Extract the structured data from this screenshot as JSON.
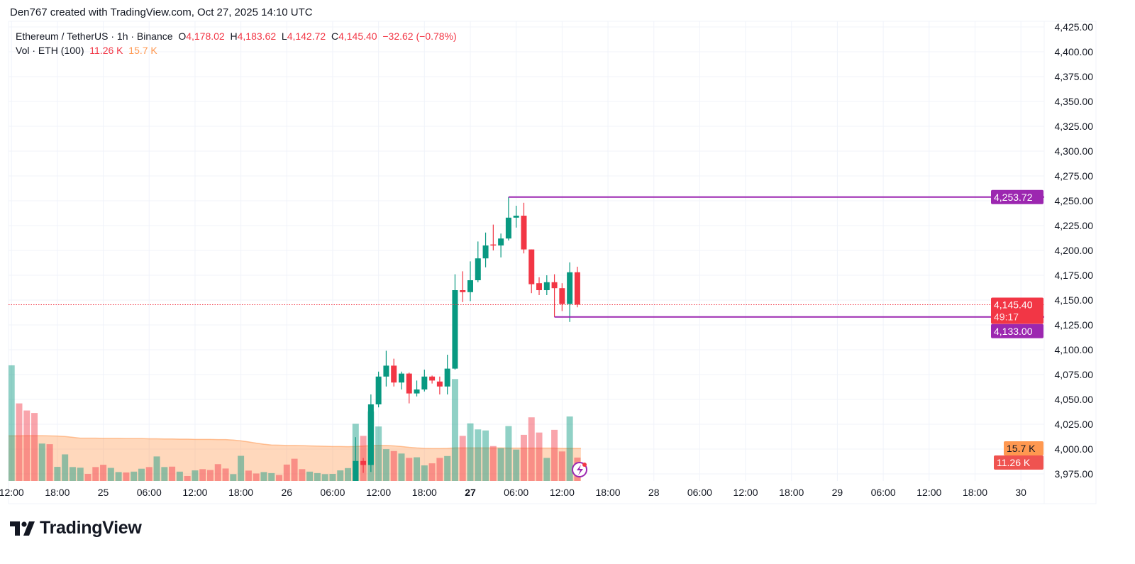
{
  "attribution": "Den767 created with TradingView.com, Oct 27, 2025 14:10 UTC",
  "legend": {
    "symbol": "Ethereum / TetherUS · 1h · Binance",
    "o_label": "O",
    "o": "4,178.02",
    "h_label": "H",
    "h": "4,183.62",
    "l_label": "L",
    "l": "4,142.72",
    "c_label": "C",
    "c": "4,145.40",
    "change": "−32.62 (−0.78%)",
    "vol_label": "Vol · ETH (100)",
    "vol": "11.26 K",
    "vol_ma": "15.7 K"
  },
  "logo": "TradingView",
  "colors": {
    "up": "#089981",
    "down": "#F23645",
    "line": "#9C27B0",
    "ma": "#FF9850"
  },
  "chart_data": {
    "type": "candlestick",
    "title": "",
    "ylim": [
      3975,
      4425
    ],
    "grid": true,
    "y_ticks": [
      "4,425.00",
      "4,400.00",
      "4,375.00",
      "4,350.00",
      "4,325.00",
      "4,300.00",
      "4,275.00",
      "4,250.00",
      "4,225.00",
      "4,200.00",
      "4,175.00",
      "4,150.00",
      "4,125.00",
      "4,100.00",
      "4,075.00",
      "4,050.00",
      "4,025.00",
      "4,000.00",
      "3,975.00"
    ],
    "x_ticks": [
      {
        "h": -60,
        "label": "12:00"
      },
      {
        "h": -54,
        "label": "18:00"
      },
      {
        "h": -48,
        "label": "25"
      },
      {
        "h": -42,
        "label": "06:00"
      },
      {
        "h": -36,
        "label": "12:00"
      },
      {
        "h": -30,
        "label": "18:00"
      },
      {
        "h": -24,
        "label": "26"
      },
      {
        "h": -18,
        "label": "06:00"
      },
      {
        "h": -12,
        "label": "12:00"
      },
      {
        "h": -6,
        "label": "18:00"
      },
      {
        "h": 0,
        "label": "27",
        "bold": true
      },
      {
        "h": 6,
        "label": "06:00"
      },
      {
        "h": 12,
        "label": "12:00"
      },
      {
        "h": 18,
        "label": "18:00"
      },
      {
        "h": 24,
        "label": "28"
      },
      {
        "h": 30,
        "label": "06:00"
      },
      {
        "h": 36,
        "label": "12:00"
      },
      {
        "h": 42,
        "label": "18:00"
      },
      {
        "h": 48,
        "label": "29"
      },
      {
        "h": 54,
        "label": "06:00"
      },
      {
        "h": 60,
        "label": "12:00"
      },
      {
        "h": 66,
        "label": "18:00"
      },
      {
        "h": 72,
        "label": "30"
      }
    ],
    "first_bar": "Oct 24 12:00",
    "candles_start": "Oct 26 09:00",
    "candles": [
      [
        3962,
        4012,
        3955,
        3988
      ],
      [
        3988,
        3991,
        3976,
        3984
      ],
      [
        3984,
        4055,
        3977,
        4045
      ],
      [
        4045,
        4078,
        4042,
        4073
      ],
      [
        4073,
        4099,
        4063,
        4084
      ],
      [
        4084,
        4091,
        4063,
        4067
      ],
      [
        4067,
        4078,
        4060,
        4076
      ],
      [
        4076,
        4077,
        4046,
        4056
      ],
      [
        4056,
        4069,
        4053,
        4060
      ],
      [
        4060,
        4080,
        4058,
        4073
      ],
      [
        4073,
        4074,
        4066,
        4069
      ],
      [
        4068,
        4073,
        4055,
        4063
      ],
      [
        4063,
        4095,
        4055,
        4081
      ],
      [
        4081,
        4176,
        4080,
        4160
      ],
      [
        4160,
        4179,
        4148,
        4158
      ],
      [
        4158,
        4189,
        4149,
        4170
      ],
      [
        4170,
        4209,
        4168,
        4192
      ],
      [
        4192,
        4218,
        4183,
        4205
      ],
      [
        4206,
        4226,
        4200,
        4205
      ],
      [
        4205,
        4217,
        4193,
        4212
      ],
      [
        4212,
        4253.72,
        4210,
        4233
      ],
      [
        4233,
        4245,
        4223,
        4235
      ],
      [
        4235,
        4248,
        4197,
        4201
      ],
      [
        4201,
        4201,
        4157,
        4166
      ],
      [
        4167,
        4173,
        4155,
        4160
      ],
      [
        4160,
        4175,
        4155,
        4168
      ],
      [
        4168,
        4176,
        4133,
        4162
      ],
      [
        4162,
        4167,
        4139,
        4146
      ],
      [
        4146,
        4188,
        4128,
        4178
      ],
      [
        4178.02,
        4183.62,
        4142.72,
        4145.4
      ]
    ],
    "volume_k": [
      55.6,
      37.3,
      33.9,
      32.7,
      18.0,
      17.7,
      6.8,
      12.8,
      6.7,
      6.4,
      3.4,
      6.7,
      7.8,
      6.3,
      4.3,
      4.1,
      4.5,
      5.9,
      6.7,
      11.8,
      6.7,
      6.9,
      4.5,
      2.4,
      5.1,
      5.7,
      5.3,
      8.1,
      6.0,
      3.3,
      12.1,
      5.0,
      3.6,
      4.3,
      3.8,
      2.9,
      7.9,
      10.7,
      5.7,
      4.5,
      3.8,
      3.3,
      3.4,
      5.1,
      6.2,
      27.5,
      21.7,
      33.4,
      26.2,
      15.3,
      14.4,
      13.2,
      11.1,
      11.4,
      7.5,
      8.5,
      11.1,
      12.0,
      49.0,
      21.7,
      27.7,
      24.8,
      24.3,
      16.8,
      15.8,
      26.4,
      15.1,
      22.2,
      30.6,
      23.3,
      11.1,
      24.6,
      14.2,
      31.0,
      11.26
    ],
    "volume_up": [
      1,
      0,
      0,
      0,
      1,
      0,
      1,
      1,
      1,
      1,
      0,
      0,
      0,
      1,
      1,
      0,
      1,
      1,
      0,
      1,
      1,
      0,
      1,
      0,
      1,
      0,
      0,
      0,
      0,
      1,
      1,
      0,
      0,
      1,
      1,
      0,
      0,
      0,
      0,
      1,
      1,
      1,
      1,
      1,
      1
    ],
    "volume_ma_k": [
      21.7,
      21.7,
      21.8,
      21.8,
      21.8,
      21.7,
      21.6,
      21.4,
      21.0,
      20.6,
      20.6,
      20.6,
      20.5,
      20.5,
      20.5,
      20.4,
      20.4,
      20.4,
      20.3,
      20.3,
      20.2,
      20.2,
      20.1,
      20.1,
      20.0,
      20.0,
      20.0,
      19.9,
      19.9,
      19.7,
      19.3,
      18.8,
      18.2,
      17.7,
      17.3,
      17.2,
      17.1,
      17.1,
      17.0,
      16.9,
      16.8,
      16.7,
      16.6,
      16.6,
      16.5,
      16.6,
      16.8,
      17.0,
      17.1,
      17.1,
      16.9,
      16.6,
      16.2,
      15.9,
      15.7,
      15.6,
      15.6,
      15.7,
      15.9,
      15.9,
      15.9,
      15.9,
      15.9,
      15.9,
      15.9,
      15.8,
      15.8,
      15.8,
      15.8,
      15.8,
      15.8,
      15.8,
      15.7,
      15.7,
      15.7
    ],
    "hlines": [
      {
        "value": 4253.72,
        "label": "4,253.72",
        "from_bar": 65
      },
      {
        "value": 4133.0,
        "label": "4,133.00",
        "from_bar": 71
      }
    ],
    "last_price": {
      "value": 4145.4,
      "label": "4,145.40",
      "countdown": "49:17"
    },
    "volume_labels": {
      "ma": "15.7 K",
      "last": "11.26 K"
    }
  }
}
